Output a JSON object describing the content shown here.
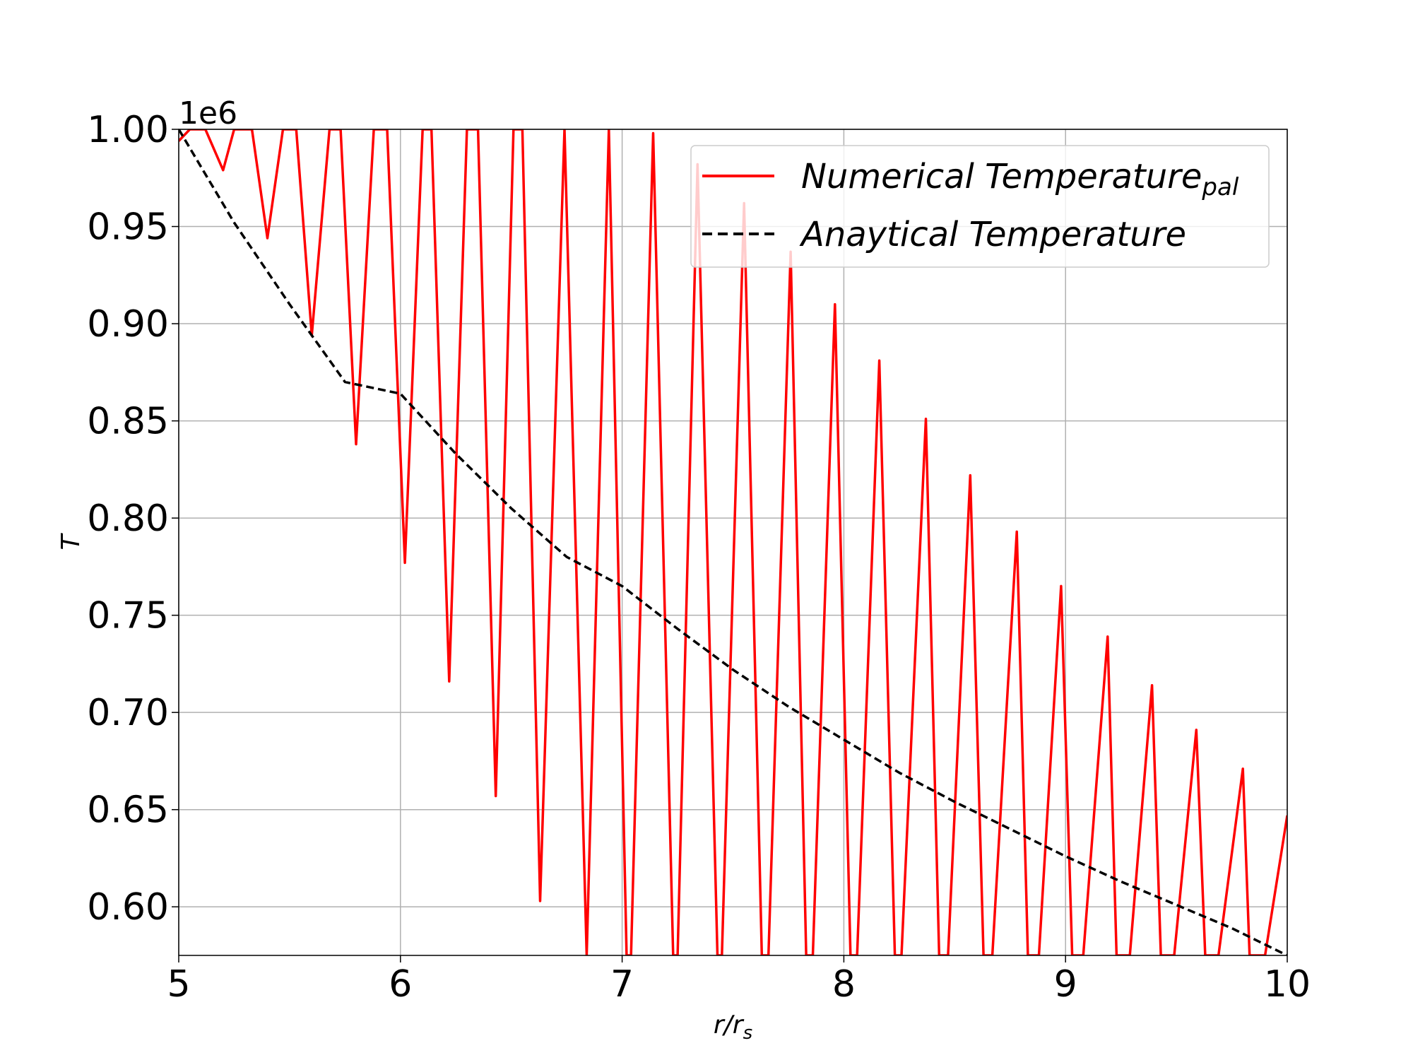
{
  "chart_data": {
    "type": "line",
    "xlabel_main": "r/r",
    "xlabel_sub": "s",
    "ylabel": "T",
    "y_offset_label": "1e6",
    "xlim": [
      5,
      10
    ],
    "ylim": [
      0.575,
      1.0
    ],
    "x_ticks": [
      5,
      6,
      7,
      8,
      9,
      10
    ],
    "x_tick_labels": [
      "5",
      "6",
      "7",
      "8",
      "9",
      "10"
    ],
    "y_ticks": [
      0.6,
      0.65,
      0.7,
      0.75,
      0.8,
      0.85,
      0.9,
      0.95,
      1.0
    ],
    "y_tick_labels": [
      "0.60",
      "0.65",
      "0.70",
      "0.75",
      "0.80",
      "0.85",
      "0.90",
      "0.95",
      "1.00"
    ],
    "grid": true,
    "legend_position": "top-right",
    "series": [
      {
        "name": "Numerical Temperature",
        "name_sub": "pal",
        "color": "#ff0000",
        "style": "solid",
        "x": [
          5.0,
          5.05,
          5.12,
          5.2,
          5.25,
          5.33,
          5.4,
          5.47,
          5.53,
          5.6,
          5.68,
          5.73,
          5.8,
          5.88,
          5.94,
          6.02,
          6.1,
          6.14,
          6.22,
          6.3,
          6.35,
          6.43,
          6.51,
          6.55,
          6.63,
          6.74,
          6.84,
          6.94,
          7.02,
          7.04,
          7.14,
          7.23,
          7.25,
          7.34,
          7.43,
          7.45,
          7.55,
          7.63,
          7.66,
          7.76,
          7.83,
          7.86,
          7.96,
          8.03,
          8.06,
          8.16,
          8.23,
          8.26,
          8.37,
          8.43,
          8.47,
          8.57,
          8.63,
          8.67,
          8.78,
          8.83,
          8.88,
          8.98,
          9.03,
          9.08,
          9.19,
          9.23,
          9.29,
          9.39,
          9.43,
          9.49,
          9.59,
          9.63,
          9.69,
          9.8,
          9.83,
          9.9,
          10.0
        ],
        "y": [
          0.994,
          1.0,
          1.0,
          0.979,
          1.0,
          1.0,
          0.944,
          1.0,
          1.0,
          0.894,
          1.0,
          1.0,
          0.838,
          1.0,
          1.0,
          0.777,
          1.0,
          1.0,
          0.716,
          1.0,
          1.0,
          0.657,
          1.0,
          1.0,
          0.603,
          1.0,
          0.575,
          1.0,
          0.575,
          0.575,
          0.998,
          0.575,
          0.575,
          0.982,
          0.575,
          0.575,
          0.962,
          0.575,
          0.575,
          0.937,
          0.575,
          0.575,
          0.91,
          0.575,
          0.575,
          0.881,
          0.575,
          0.575,
          0.851,
          0.575,
          0.575,
          0.822,
          0.575,
          0.575,
          0.793,
          0.575,
          0.575,
          0.765,
          0.575,
          0.575,
          0.739,
          0.575,
          0.575,
          0.714,
          0.575,
          0.575,
          0.691,
          0.575,
          0.575,
          0.671,
          0.575,
          0.575,
          0.647
        ]
      },
      {
        "name": "Anaytical Temperature",
        "color": "#000000",
        "style": "dashed",
        "x": [
          5.0,
          5.25,
          5.5,
          5.75,
          6.0,
          6.25,
          6.5,
          6.75,
          7.0,
          7.25,
          7.5,
          7.75,
          8.0,
          8.25,
          8.5,
          8.75,
          9.0,
          9.25,
          9.5,
          9.75,
          10.0
        ],
        "y": [
          1.0,
          0.952,
          0.91,
          0.87,
          0.864,
          0.833,
          0.805,
          0.78,
          0.765,
          0.743,
          0.722,
          0.703,
          0.686,
          0.669,
          0.654,
          0.64,
          0.626,
          0.613,
          0.601,
          0.589,
          0.575
        ]
      }
    ]
  }
}
